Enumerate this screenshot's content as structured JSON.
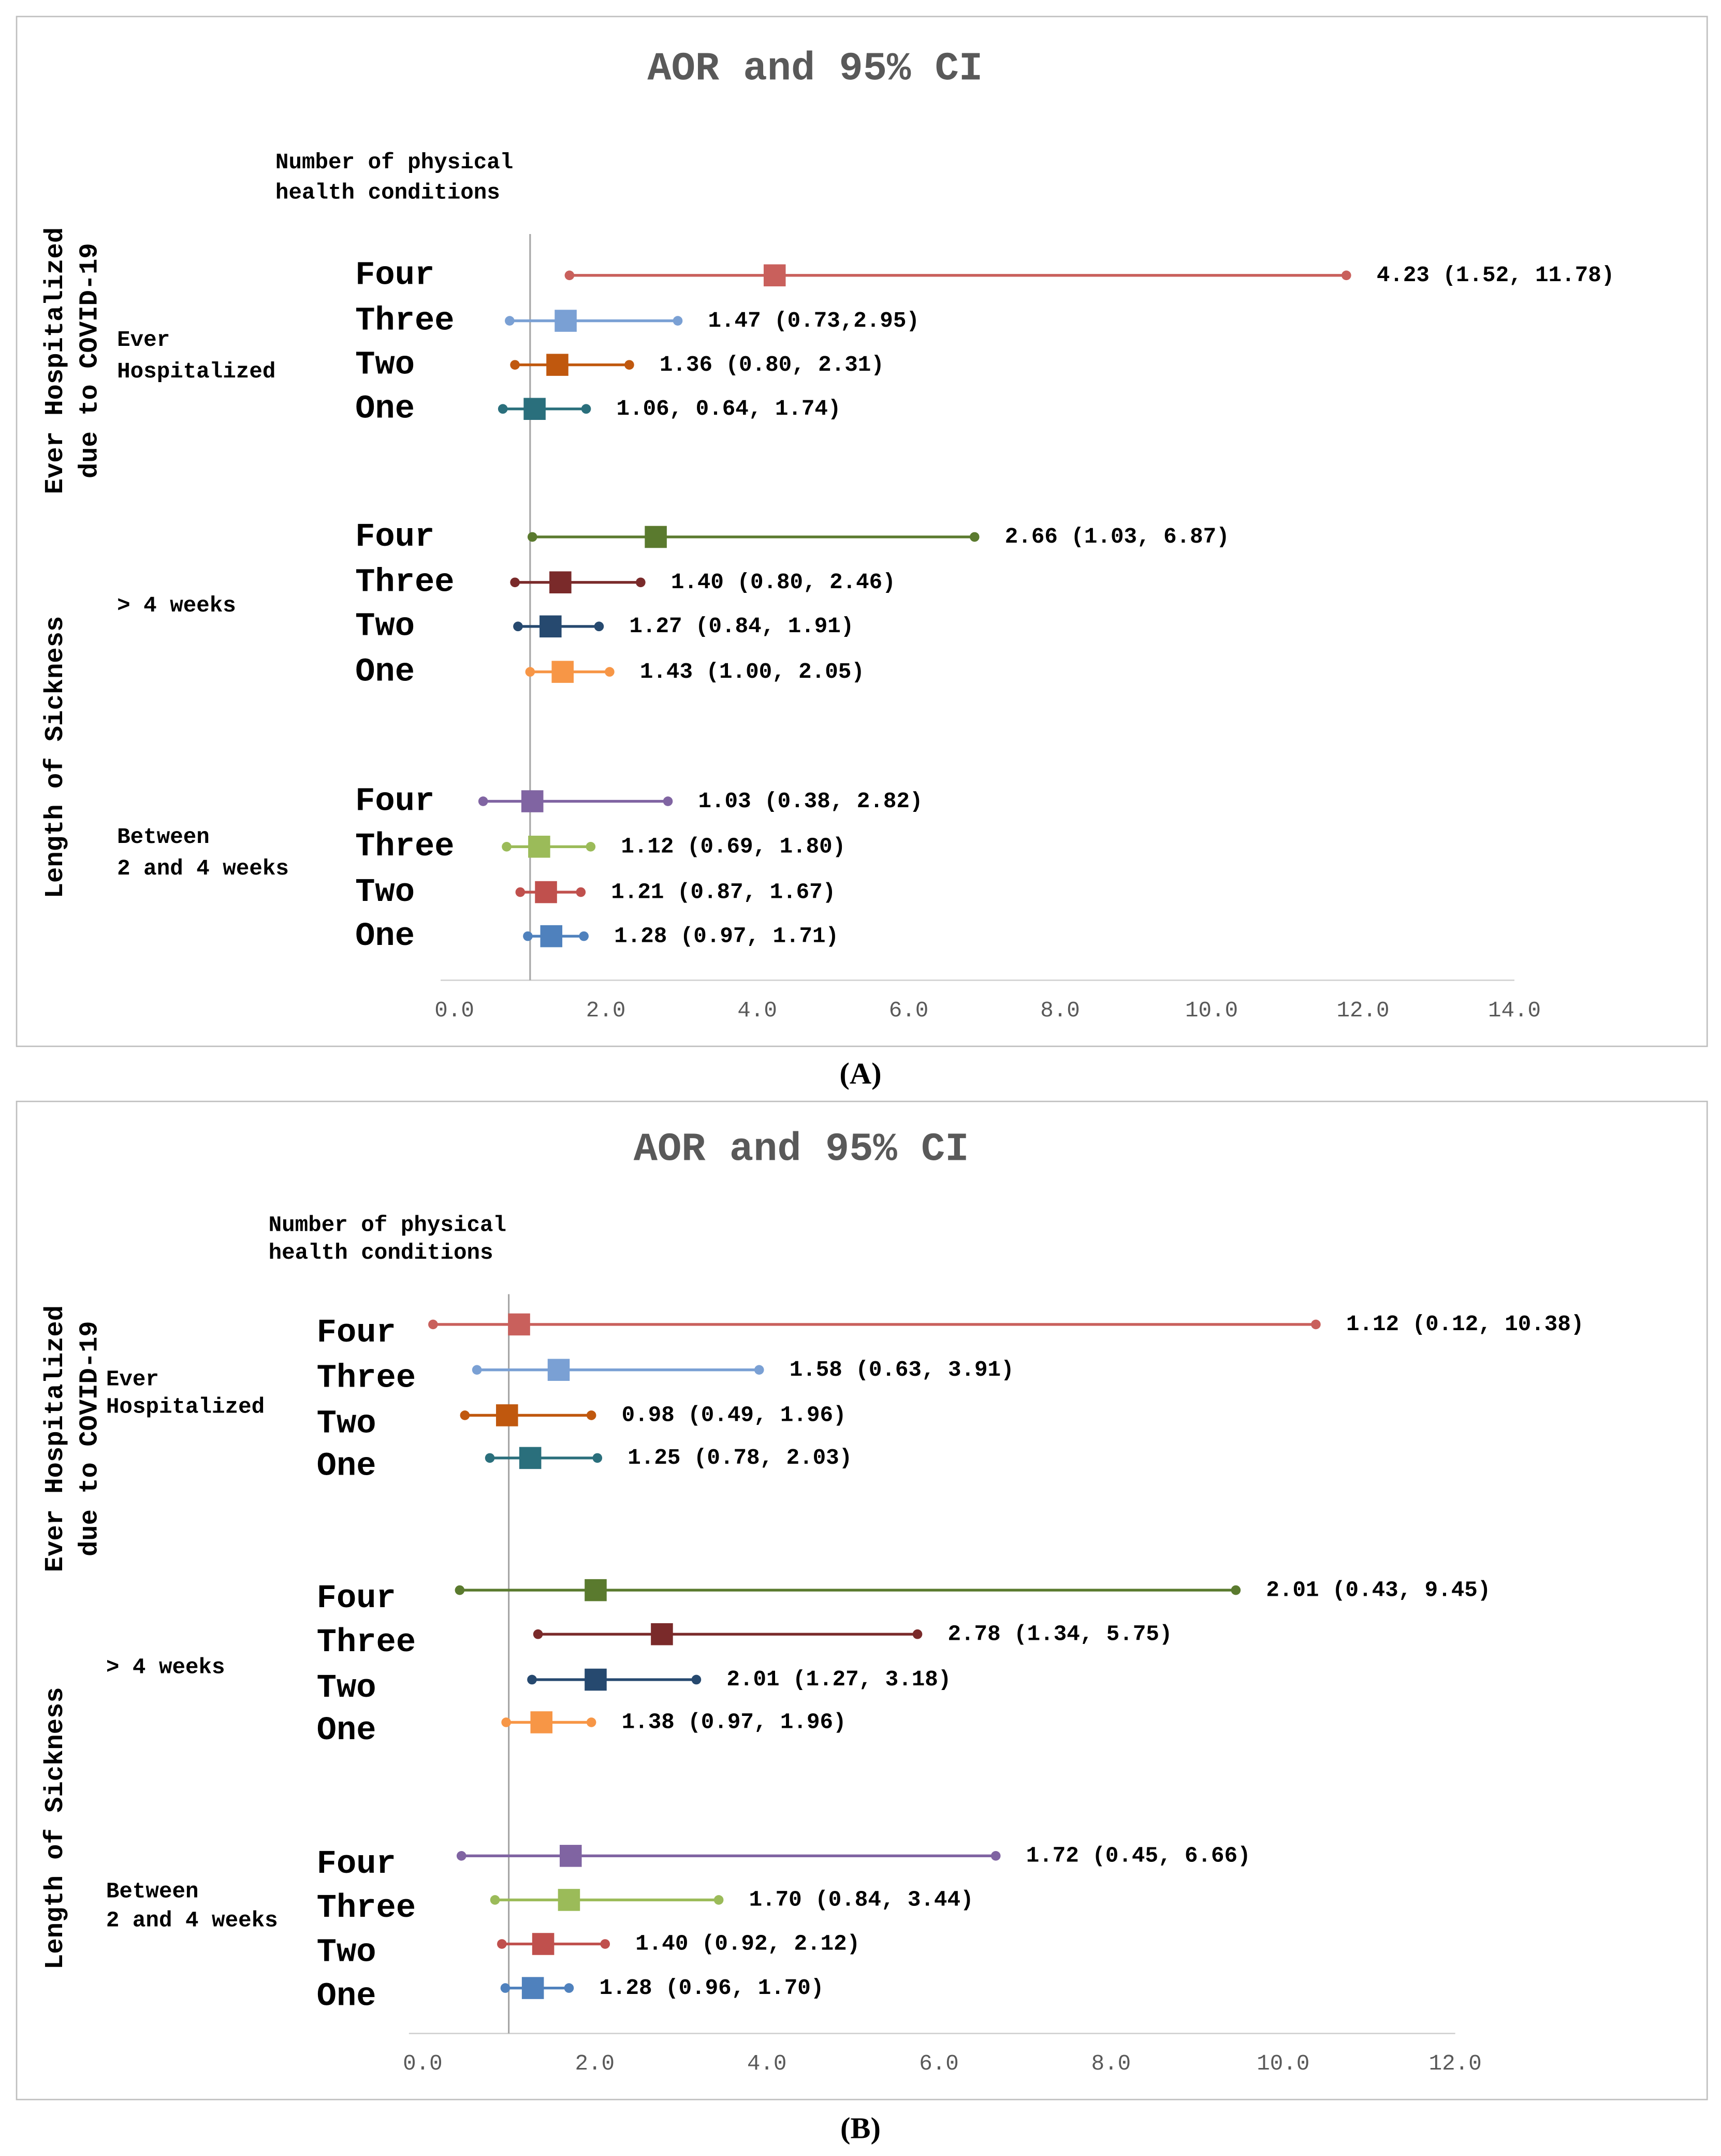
{
  "chart_data": [
    {
      "type": "forest",
      "caption": "(A)",
      "title": "AOR and 95% CI",
      "subtitle": [
        "Number of physical",
        "health conditions"
      ],
      "reference_line": 1,
      "xlim": [
        0,
        14
      ],
      "xticks": [
        {
          "value": 0,
          "label": "0.0"
        },
        {
          "value": 2,
          "label": "2.0"
        },
        {
          "value": 4,
          "label": "4.0"
        },
        {
          "value": 6,
          "label": "6.0"
        },
        {
          "value": 8,
          "label": "8.0"
        },
        {
          "value": 10,
          "label": "10.0"
        },
        {
          "value": 12,
          "label": "12.0"
        },
        {
          "value": 14,
          "label": "14.0"
        }
      ],
      "sections": [
        {
          "label": [
            "Ever Hospitalized",
            "due to COVID-19"
          ]
        },
        {
          "label": [
            "Length of Sickness"
          ]
        }
      ],
      "groups": [
        {
          "label": [
            "Ever",
            "Hospitalized"
          ],
          "categories": [
            "Four",
            "Three",
            "Two",
            "One"
          ],
          "colors": [
            "#c9605c",
            "#7aa0d4",
            "#c0580e",
            "#2a6f7c"
          ],
          "values": [
            4.23,
            1.47,
            1.36,
            1.06
          ],
          "lower": [
            1.52,
            0.73,
            0.8,
            0.64
          ],
          "upper": [
            11.78,
            2.95,
            2.31,
            1.74
          ],
          "value_labels": [
            "4.23 (1.52, 11.78)",
            "1.47 (0.73,2.95)",
            "1.36 (0.80, 2.31)",
            "1.06, 0.64, 1.74)"
          ]
        },
        {
          "label": [
            "> 4 weeks"
          ],
          "categories": [
            "Four",
            "Three",
            "Two",
            "One"
          ],
          "colors": [
            "#5a7a2e",
            "#7a2a2a",
            "#26496f",
            "#f79646"
          ],
          "values": [
            2.66,
            1.4,
            1.27,
            1.43
          ],
          "lower": [
            1.03,
            0.8,
            0.84,
            1.0
          ],
          "upper": [
            6.87,
            2.46,
            1.91,
            2.05
          ],
          "value_labels": [
            "2.66 (1.03, 6.87)",
            "1.40 (0.80, 2.46)",
            "1.27 (0.84, 1.91)",
            "1.43 (1.00, 2.05)"
          ]
        },
        {
          "label": [
            "Between",
            "2 and 4 weeks"
          ],
          "categories": [
            "Four",
            "Three",
            "Two",
            "One"
          ],
          "colors": [
            "#8064a2",
            "#9bbb59",
            "#c0504d",
            "#4f81bd"
          ],
          "values": [
            1.03,
            1.12,
            1.21,
            1.28
          ],
          "lower": [
            0.38,
            0.69,
            0.87,
            0.97
          ],
          "upper": [
            2.82,
            1.8,
            1.67,
            1.71
          ],
          "value_labels": [
            "1.03 (0.38, 2.82)",
            "1.12 (0.69, 1.80)",
            "1.21 (0.87, 1.67)",
            "1.28 (0.97, 1.71)"
          ]
        }
      ]
    },
    {
      "type": "forest",
      "caption": "(B)",
      "title": "AOR and 95% CI",
      "subtitle": [
        "Number of physical",
        "health conditions"
      ],
      "reference_line": 1,
      "xlim": [
        0,
        12
      ],
      "xticks": [
        {
          "value": 0,
          "label": "0.0"
        },
        {
          "value": 2,
          "label": "2.0"
        },
        {
          "value": 4,
          "label": "4.0"
        },
        {
          "value": 6,
          "label": "6.0"
        },
        {
          "value": 8,
          "label": "8.0"
        },
        {
          "value": 10,
          "label": "10.0"
        },
        {
          "value": 12,
          "label": "12.0"
        }
      ],
      "sections": [
        {
          "label": [
            "Ever Hospitalized",
            "due to COVID-19"
          ]
        },
        {
          "label": [
            "Length of Sickness"
          ]
        }
      ],
      "groups": [
        {
          "label": [
            "Ever",
            "Hospitalized"
          ],
          "categories": [
            "Four",
            "Three",
            "Two",
            "One"
          ],
          "colors": [
            "#c9605c",
            "#7aa0d4",
            "#c0580e",
            "#2a6f7c"
          ],
          "values": [
            1.12,
            1.58,
            0.98,
            1.25
          ],
          "lower": [
            0.12,
            0.63,
            0.49,
            0.78
          ],
          "upper": [
            10.38,
            3.91,
            1.96,
            2.03
          ],
          "value_labels": [
            "1.12 (0.12, 10.38)",
            "1.58 (0.63, 3.91)",
            "0.98 (0.49, 1.96)",
            "1.25 (0.78, 2.03)"
          ]
        },
        {
          "label": [
            "> 4 weeks"
          ],
          "categories": [
            "Four",
            "Three",
            "Two",
            "One"
          ],
          "colors": [
            "#5a7a2e",
            "#7a2a2a",
            "#26496f",
            "#f79646"
          ],
          "values": [
            2.01,
            2.78,
            2.01,
            1.38
          ],
          "lower": [
            0.43,
            1.34,
            1.27,
            0.97
          ],
          "upper": [
            9.45,
            5.75,
            3.18,
            1.96
          ],
          "value_labels": [
            "2.01 (0.43, 9.45)",
            "2.78 (1.34, 5.75)",
            "2.01 (1.27, 3.18)",
            "1.38 (0.97, 1.96)"
          ]
        },
        {
          "label": [
            "Between",
            "2 and 4 weeks"
          ],
          "categories": [
            "Four",
            "Three",
            "Two",
            "One"
          ],
          "colors": [
            "#8064a2",
            "#9bbb59",
            "#c0504d",
            "#4f81bd"
          ],
          "values": [
            1.72,
            1.7,
            1.4,
            1.28
          ],
          "lower": [
            0.45,
            0.84,
            0.92,
            0.96
          ],
          "upper": [
            6.66,
            3.44,
            2.12,
            1.7
          ],
          "value_labels": [
            "1.72 (0.45, 6.66)",
            "1.70 (0.84, 3.44)",
            "1.40 (0.92, 2.12)",
            "1.28 (0.96, 1.70)"
          ]
        }
      ]
    }
  ]
}
